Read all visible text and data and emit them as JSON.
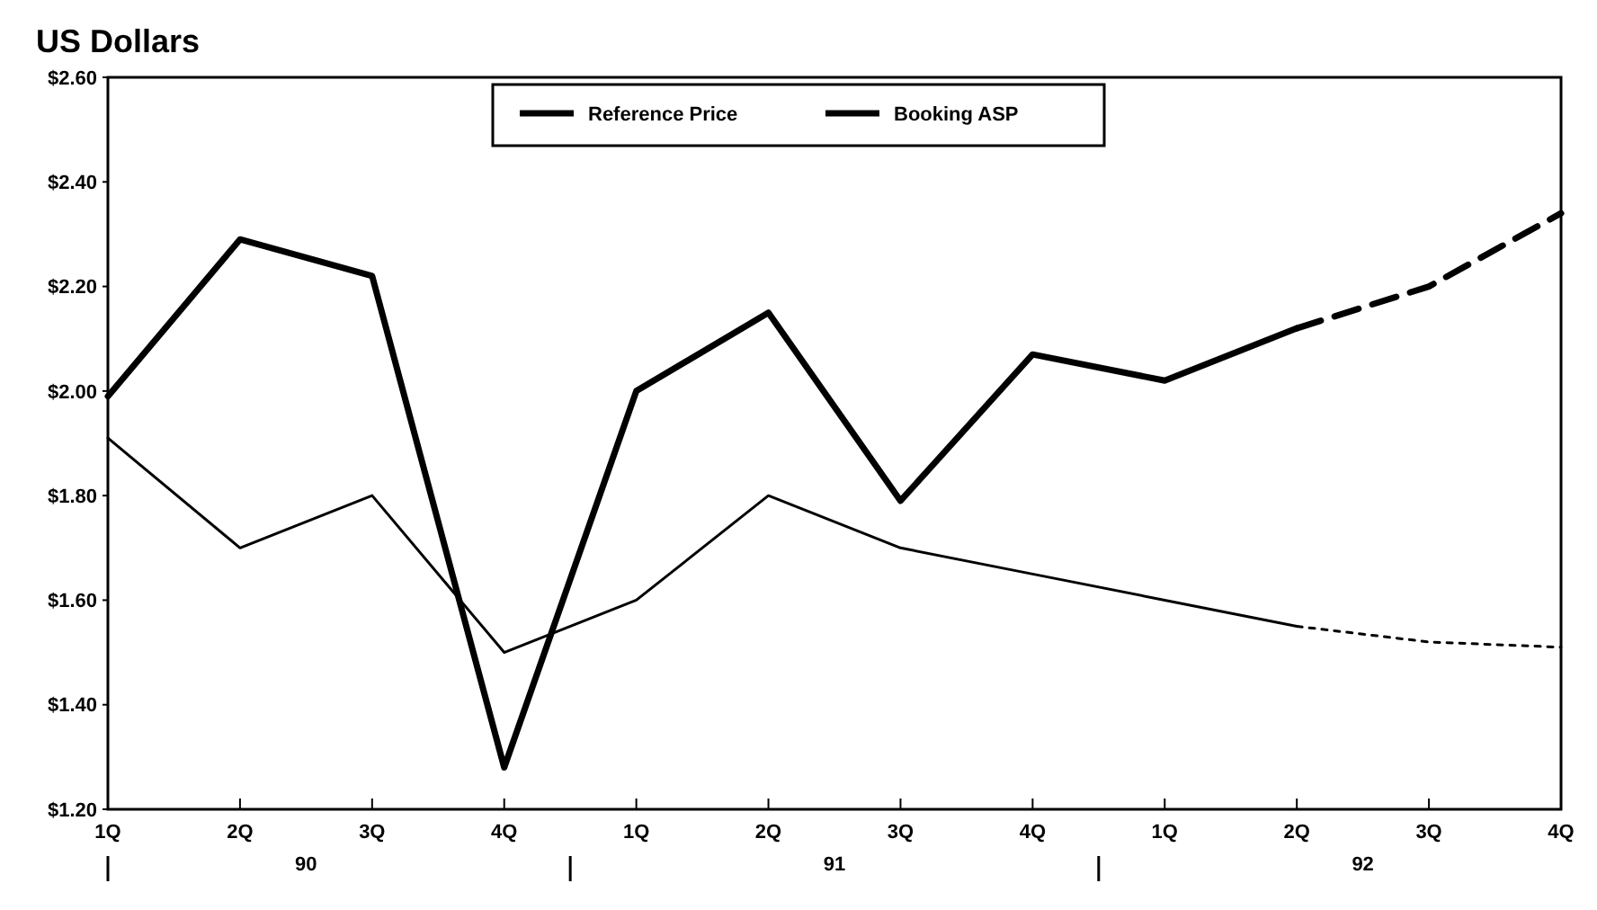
{
  "chart_data": {
    "type": "line",
    "ylabel": "US Dollars",
    "categories": [
      "1Q",
      "2Q",
      "3Q",
      "4Q",
      "1Q",
      "2Q",
      "3Q",
      "4Q",
      "1Q",
      "2Q",
      "3Q",
      "4Q"
    ],
    "series": [
      {
        "name": "Reference Price",
        "color": "#000000",
        "line_style": "solid",
        "values": [
          1.99,
          2.29,
          2.22,
          1.28,
          2.0,
          2.15,
          1.79,
          2.07,
          2.02,
          2.12,
          null,
          null
        ]
      },
      {
        "name": "Booking ASP",
        "color": "#000000",
        "line_style": "solid",
        "values": [
          1.91,
          1.7,
          1.8,
          1.5,
          1.6,
          1.8,
          1.7,
          1.65,
          1.6,
          1.55,
          null,
          null
        ]
      },
      {
        "color": "#000000",
        "line_style": "dashed",
        "values": [
          null,
          null,
          null,
          null,
          null,
          null,
          null,
          null,
          null,
          2.12,
          2.2,
          2.34
        ]
      },
      {
        "color": "#000000",
        "line_style": "dotted",
        "values": [
          null,
          null,
          null,
          null,
          null,
          null,
          null,
          null,
          null,
          1.55,
          1.52,
          1.51
        ]
      }
    ],
    "ylim": [
      1.2,
      2.6
    ],
    "yticks": [
      {
        "value": 1.2,
        "label": "$1.20"
      },
      {
        "value": 1.4,
        "label": "$1.40"
      },
      {
        "value": 1.6,
        "label": "$1.60"
      },
      {
        "value": 1.8,
        "label": "$1.80"
      },
      {
        "value": 2.0,
        "label": "$2.00"
      },
      {
        "value": 2.2,
        "label": "$2.20"
      },
      {
        "value": 2.4,
        "label": "$2.40"
      },
      {
        "value": 2.6,
        "label": "$2.60"
      }
    ],
    "annotations": [
      "90",
      "91",
      "92"
    ],
    "legend": "top",
    "grid": false
  }
}
